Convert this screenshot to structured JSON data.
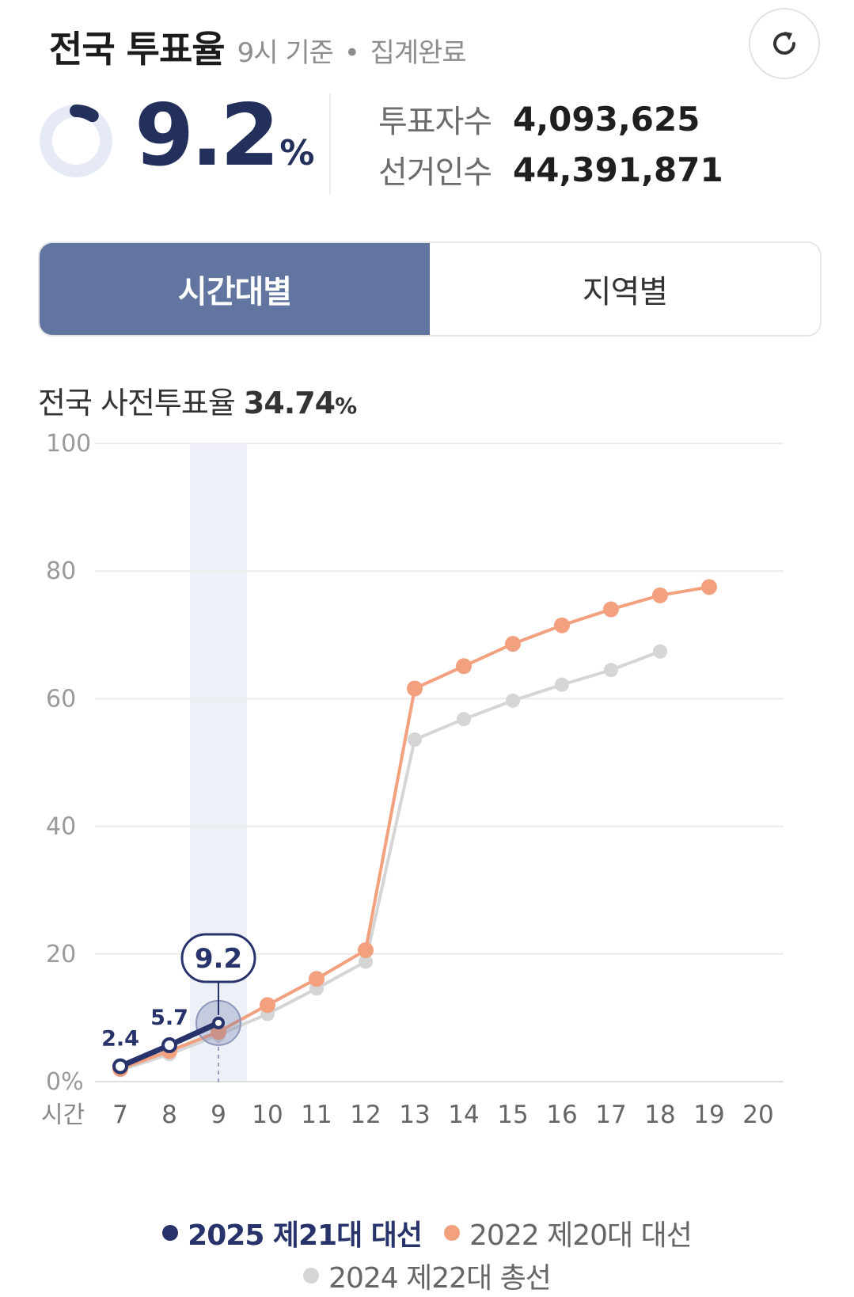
{
  "header": {
    "title": "전국 투표율",
    "time_label": "9시 기준",
    "separator": "•",
    "status_label": "집계완료"
  },
  "summary": {
    "rate_value": "9.2",
    "rate_unit": "%",
    "rate_fraction": 0.092,
    "voters_label": "투표자수",
    "voters_value": "4,093,625",
    "electors_label": "선거인수",
    "electors_value": "44,391,871"
  },
  "tabs": [
    {
      "label": "시간대별",
      "active": true
    },
    {
      "label": "지역별",
      "active": false
    }
  ],
  "advance_vote": {
    "label": "전국 사전투표율",
    "value": "34.74",
    "unit": "%"
  },
  "icons": {
    "refresh": "refresh-icon"
  },
  "colors": {
    "primary": "#24305c",
    "tab_active": "#6274a0",
    "series_2025": "#27336a",
    "series_2022": "#f3a07f",
    "series_2024": "#d5d5d5",
    "highlight_band": "#eef0f8"
  },
  "chart_data": {
    "type": "line",
    "x": [
      7,
      8,
      9,
      10,
      11,
      12,
      13,
      14,
      15,
      16,
      17,
      18,
      19,
      20
    ],
    "x_title": "시간",
    "y_ticks": [
      "0%",
      "20",
      "40",
      "60",
      "80",
      "100"
    ],
    "ylim": [
      0,
      100
    ],
    "grid": true,
    "legend_position": "bottom",
    "highlight_x": 9,
    "highlight_value": "9.2",
    "series": [
      {
        "name": "2025 제21대 대선",
        "x": [
          7,
          8,
          9
        ],
        "values": [
          2.4,
          5.7,
          9.2
        ],
        "labels": [
          "2.4",
          "5.7",
          "9.2"
        ]
      },
      {
        "name": "2022 제20대 대선",
        "x": [
          7,
          8,
          9,
          10,
          11,
          12,
          13,
          14,
          15,
          16,
          17,
          18,
          19
        ],
        "values": [
          2.0,
          4.8,
          7.8,
          12.0,
          16.1,
          20.6,
          61.6,
          65.1,
          68.6,
          71.5,
          74.0,
          76.2,
          77.5
        ]
      },
      {
        "name": "2024 제22대 총선",
        "x": [
          7,
          8,
          9,
          10,
          11,
          12,
          13,
          14,
          15,
          16,
          17,
          18
        ],
        "values": [
          1.8,
          4.3,
          7.3,
          10.6,
          14.6,
          18.8,
          53.6,
          56.8,
          59.7,
          62.2,
          64.5,
          67.4
        ]
      }
    ]
  }
}
